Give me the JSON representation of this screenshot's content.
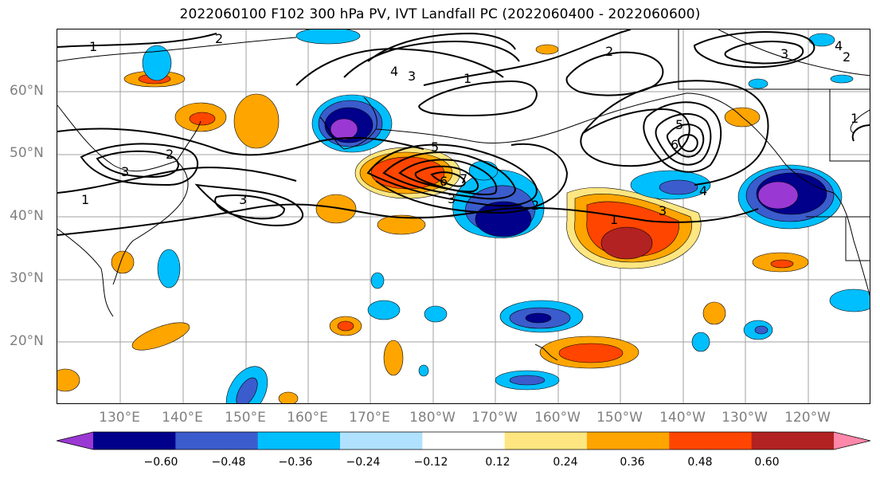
{
  "title": "2022060100 F102 300 hPa PV, IVT Landfall PC (2022060400 - 2022060600)",
  "lat_labels": [
    "60°N",
    "50°N",
    "40°N",
    "30°N",
    "20°N"
  ],
  "lon_labels": [
    "130°E",
    "140°E",
    "150°E",
    "160°E",
    "170°E",
    "180°W",
    "170°W",
    "160°W",
    "150°W",
    "140°W",
    "130°W",
    "120°W"
  ],
  "colorbar": {
    "colors": [
      "#9a38d4",
      "#00008b",
      "#3b5ccc",
      "#00bfff",
      "#b0e2ff",
      "#ffffff",
      "#ffe680",
      "#ffa500",
      "#ff4500",
      "#b22222",
      "#ff88aa"
    ],
    "tick_labels": [
      "−0.60",
      "−0.48",
      "−0.36",
      "−0.24",
      "−0.12",
      "0.12",
      "0.24",
      "0.36",
      "0.48",
      "0.60"
    ]
  },
  "contour_labels": [
    "1",
    "2",
    "2",
    "3",
    "4",
    "5",
    "6",
    "7",
    "3",
    "2",
    "1",
    "3",
    "3",
    "1",
    "2",
    "1",
    "3",
    "4",
    "5",
    "6",
    "2",
    "1",
    "4",
    "3"
  ],
  "colors": {
    "grid": "#a0a0a0",
    "tick_text": "#808080",
    "contour": "#000000"
  }
}
